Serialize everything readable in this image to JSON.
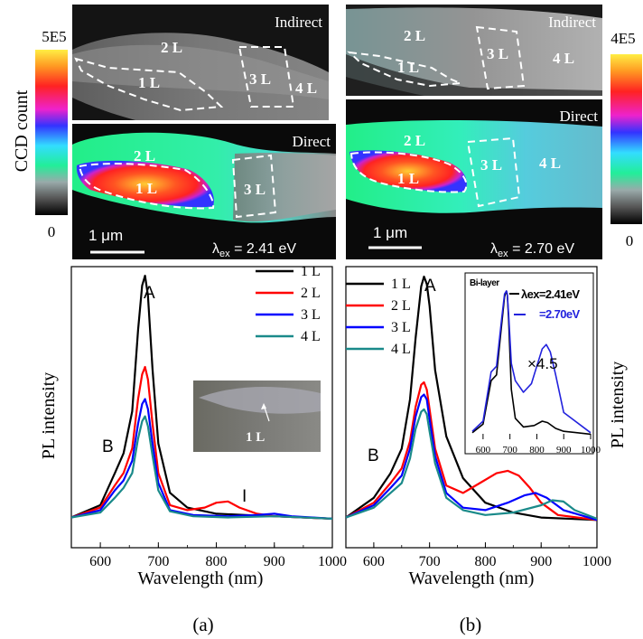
{
  "figure": {
    "panel_a_label": "(a)",
    "panel_b_label": "(b)"
  },
  "colorbar_left": {
    "max_label": "5E5",
    "min_label": "0",
    "title": "CCD count"
  },
  "colorbar_right": {
    "max_label": "4E5",
    "min_label": "0"
  },
  "maps": {
    "a_indirect": {
      "title": "Indirect",
      "labels": [
        "2 L",
        "1 L",
        "3 L",
        "4 L"
      ]
    },
    "a_direct": {
      "title": "Direct",
      "labels": [
        "2 L",
        "1 L",
        "3 L"
      ],
      "scalebar": "1 μm",
      "excitation_symbol": "λ",
      "excitation_sub": "ex",
      "excitation_value": " = 2.41 eV"
    },
    "b_indirect": {
      "title": "Indirect",
      "labels": [
        "2 L",
        "1 L",
        "3 L",
        "4 L"
      ]
    },
    "b_direct": {
      "title": "Direct",
      "labels": [
        "2 L",
        "1 L",
        "3 L",
        "4 L"
      ],
      "scalebar": "1 μm",
      "excitation_symbol": "λ",
      "excitation_sub": "ex",
      "excitation_value": " = 2.70 eV"
    }
  },
  "chart_data": [
    {
      "type": "line",
      "panel": "(a)",
      "xlabel": "Wavelength (nm)",
      "ylabel": "PL intensity",
      "xlim": [
        550,
        1000
      ],
      "xticks": [
        600,
        700,
        800,
        900,
        1000
      ],
      "peak_labels": [
        "A",
        "B",
        "I"
      ],
      "inset_label": "1 L",
      "series": [
        {
          "name": "1 L",
          "color": "#000000",
          "x": [
            550,
            600,
            625,
            640,
            655,
            665,
            672,
            677,
            682,
            690,
            700,
            720,
            750,
            800,
            850,
            900,
            1000
          ],
          "y": [
            0.02,
            0.07,
            0.2,
            0.28,
            0.45,
            0.78,
            0.96,
            1.0,
            0.92,
            0.62,
            0.32,
            0.12,
            0.06,
            0.035,
            0.03,
            0.025,
            0.015
          ]
        },
        {
          "name": "2 L",
          "color": "#ff0000",
          "x": [
            550,
            600,
            625,
            640,
            655,
            665,
            672,
            677,
            682,
            690,
            700,
            720,
            750,
            780,
            800,
            820,
            840,
            870,
            900,
            1000
          ],
          "y": [
            0.02,
            0.06,
            0.15,
            0.2,
            0.3,
            0.5,
            0.6,
            0.63,
            0.58,
            0.4,
            0.2,
            0.07,
            0.05,
            0.06,
            0.08,
            0.085,
            0.06,
            0.035,
            0.025,
            0.015
          ]
        },
        {
          "name": "3 L",
          "color": "#0000ff",
          "x": [
            550,
            600,
            625,
            640,
            655,
            665,
            672,
            677,
            682,
            690,
            700,
            720,
            760,
            820,
            870,
            900,
            930,
            1000
          ],
          "y": [
            0.02,
            0.05,
            0.13,
            0.17,
            0.25,
            0.4,
            0.48,
            0.5,
            0.46,
            0.32,
            0.16,
            0.05,
            0.03,
            0.025,
            0.03,
            0.035,
            0.025,
            0.015
          ]
        },
        {
          "name": "4 L",
          "color": "#1a8a8a",
          "x": [
            550,
            600,
            625,
            640,
            655,
            665,
            672,
            677,
            682,
            690,
            700,
            720,
            760,
            820,
            900,
            1000
          ],
          "y": [
            0.02,
            0.04,
            0.1,
            0.14,
            0.2,
            0.34,
            0.41,
            0.43,
            0.39,
            0.27,
            0.13,
            0.045,
            0.025,
            0.02,
            0.025,
            0.015
          ]
        }
      ]
    },
    {
      "type": "line",
      "panel": "(b)",
      "xlabel": "Wavelength (nm)",
      "ylabel": "PL intensity",
      "xlim": [
        550,
        1000
      ],
      "xticks": [
        600,
        700,
        800,
        900,
        1000
      ],
      "peak_labels": [
        "A",
        "B"
      ],
      "series": [
        {
          "name": "1 L",
          "color": "#000000",
          "x": [
            550,
            600,
            630,
            650,
            665,
            675,
            685,
            690,
            695,
            700,
            710,
            730,
            760,
            800,
            850,
            900,
            1000
          ],
          "y": [
            0.02,
            0.1,
            0.2,
            0.3,
            0.5,
            0.75,
            0.96,
            1.0,
            0.97,
            0.88,
            0.62,
            0.35,
            0.18,
            0.08,
            0.04,
            0.02,
            0.01
          ]
        },
        {
          "name": "2 L",
          "color": "#ff0000",
          "x": [
            550,
            600,
            630,
            650,
            665,
            675,
            685,
            690,
            695,
            700,
            710,
            730,
            760,
            790,
            820,
            840,
            860,
            880,
            900,
            930,
            1000
          ],
          "y": [
            0.02,
            0.08,
            0.16,
            0.22,
            0.33,
            0.47,
            0.56,
            0.57,
            0.54,
            0.46,
            0.3,
            0.15,
            0.12,
            0.16,
            0.2,
            0.21,
            0.19,
            0.14,
            0.08,
            0.03,
            0.01
          ]
        },
        {
          "name": "3 L",
          "color": "#0000ff",
          "x": [
            550,
            600,
            630,
            650,
            665,
            675,
            685,
            690,
            695,
            700,
            710,
            730,
            760,
            800,
            840,
            870,
            890,
            910,
            940,
            1000
          ],
          "y": [
            0.02,
            0.07,
            0.14,
            0.19,
            0.3,
            0.43,
            0.51,
            0.52,
            0.5,
            0.42,
            0.27,
            0.12,
            0.06,
            0.05,
            0.08,
            0.11,
            0.12,
            0.1,
            0.05,
            0.01
          ]
        },
        {
          "name": "4 L",
          "color": "#1a8a8a",
          "x": [
            550,
            600,
            630,
            650,
            665,
            675,
            685,
            690,
            695,
            700,
            710,
            730,
            760,
            800,
            850,
            900,
            920,
            940,
            960,
            1000
          ],
          "y": [
            0.02,
            0.06,
            0.12,
            0.16,
            0.26,
            0.38,
            0.45,
            0.46,
            0.44,
            0.37,
            0.24,
            0.1,
            0.05,
            0.03,
            0.04,
            0.07,
            0.09,
            0.085,
            0.05,
            0.015
          ]
        }
      ],
      "inset": {
        "type": "line",
        "title": "Bi-layer",
        "xlim": [
          550,
          1000
        ],
        "xticks": [
          600,
          700,
          800,
          900,
          1000
        ],
        "scale_annotation": "×4.5",
        "series": [
          {
            "name": "λex=2.41eV",
            "color": "#000000",
            "x": [
              560,
              600,
              630,
              650,
              670,
              680,
              687,
              690,
              695,
              705,
              720,
              750,
              790,
              820,
              840,
              870,
              900,
              1000
            ],
            "y": [
              0.02,
              0.08,
              0.38,
              0.42,
              0.78,
              0.96,
              1.0,
              0.98,
              0.8,
              0.32,
              0.12,
              0.06,
              0.07,
              0.1,
              0.09,
              0.05,
              0.03,
              0.01
            ]
          },
          {
            "name": "=2.70eV",
            "color": "#2222dd",
            "x": [
              560,
              600,
              630,
              650,
              670,
              680,
              687,
              690,
              695,
              705,
              720,
              750,
              780,
              800,
              820,
              835,
              850,
              870,
              900,
              1000
            ],
            "y": [
              0.03,
              0.1,
              0.44,
              0.48,
              0.82,
              0.98,
              1.0,
              0.98,
              0.84,
              0.5,
              0.38,
              0.3,
              0.36,
              0.48,
              0.6,
              0.63,
              0.58,
              0.42,
              0.16,
              0.02
            ]
          }
        ]
      }
    }
  ]
}
